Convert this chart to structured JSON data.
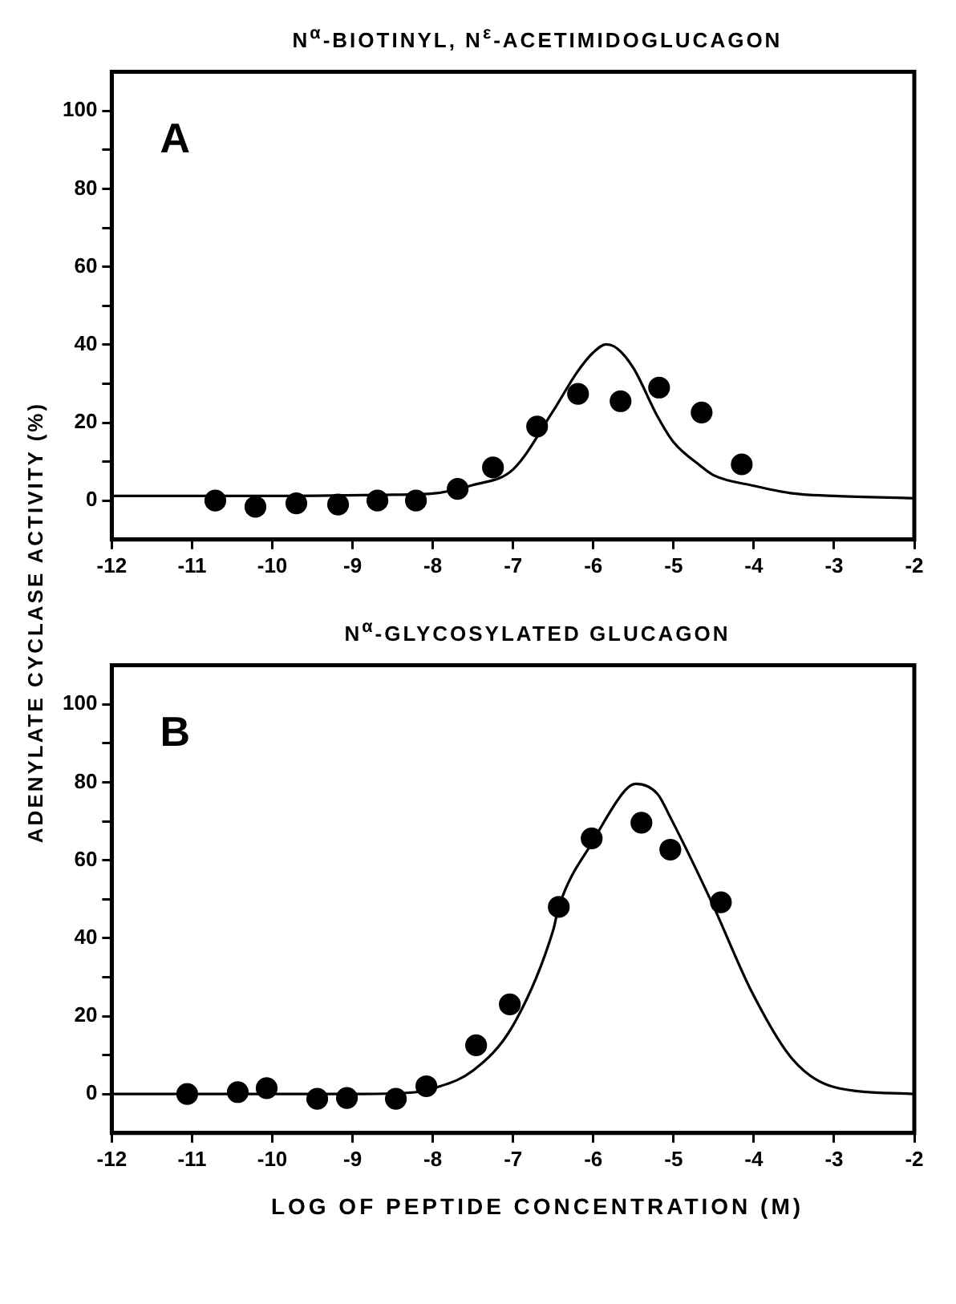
{
  "chart_data": [
    {
      "type": "scatter",
      "title": "N$^{α}$-BIOTINYL, N$^{ε}$-ACETIMIDOGLUCAGON",
      "ylabel": "ADENYLATE CYCLASE ACTIVITY (%)",
      "annotations": [
        "A"
      ],
      "xlim": [
        -12,
        -2
      ],
      "xticks": [
        -12,
        -11,
        -10,
        -9,
        -8,
        -7,
        -6,
        -5,
        -4,
        -3,
        -2
      ],
      "ylim": [
        -10,
        110
      ],
      "yticks": [
        0,
        {
          "value": 10,
          "label": null
        },
        20,
        {
          "value": 30,
          "label": null
        },
        40,
        {
          "value": 50,
          "label": null
        },
        60,
        {
          "value": 70,
          "label": null
        },
        80,
        {
          "value": 90,
          "label": null
        },
        100
      ],
      "grid": false,
      "legend": false,
      "series": [
        {
          "type": "scatter",
          "marker": "circle",
          "color": "#000000",
          "x": [
            -10.71,
            -10.21,
            -9.7,
            -9.18,
            -8.69,
            -8.21,
            -7.69,
            -7.25,
            -6.7,
            -6.19,
            -5.66,
            -5.18,
            -4.65,
            -4.15
          ],
          "values": [
            0,
            -1.6,
            -0.7,
            -1,
            0,
            0,
            3,
            8.5,
            19,
            27.4,
            25.5,
            29,
            22.6,
            9.3
          ]
        },
        {
          "type": "line",
          "marker": "none",
          "color": "#000000",
          "x": [
            -12,
            -10,
            -8.5,
            -8,
            -7.5,
            -7,
            -6.5,
            -6.2,
            -6,
            -5.84,
            -5.7,
            -5.5,
            -5.2,
            -5,
            -4.67,
            -4.5,
            -4,
            -3.5,
            -3,
            -2
          ],
          "values": [
            1.2,
            1.2,
            1.5,
            1.8,
            4,
            8,
            23,
            33,
            38,
            40.1,
            39,
            34,
            21.6,
            15,
            9,
            6.5,
            3.8,
            1.8,
            1.2,
            0.6
          ]
        }
      ]
    },
    {
      "type": "scatter",
      "title": "N$^{α}$-GLYCOSYLATED GLUCAGON",
      "xlabel": "LOG OF PEPTIDE CONCENTRATION (M)",
      "annotations": [
        "B"
      ],
      "xlim": [
        -12,
        -2
      ],
      "xticks": [
        -12,
        -11,
        -10,
        -9,
        -8,
        -7,
        -6,
        -5,
        -4,
        -3,
        -2
      ],
      "ylim": [
        -10,
        110
      ],
      "yticks": [
        0,
        {
          "value": 10,
          "label": null
        },
        20,
        {
          "value": 30,
          "label": null
        },
        40,
        {
          "value": 50,
          "label": null
        },
        60,
        {
          "value": 70,
          "label": null
        },
        80,
        {
          "value": 90,
          "label": null
        },
        100
      ],
      "grid": false,
      "legend": false,
      "series": [
        {
          "type": "scatter",
          "marker": "circle",
          "color": "#000000",
          "x": [
            -11.06,
            -10.43,
            -10.07,
            -9.44,
            -9.07,
            -8.46,
            -8.08,
            -7.46,
            -7.04,
            -6.43,
            -6.02,
            -5.4,
            -5.04,
            -4.41
          ],
          "values": [
            0,
            0.5,
            1.5,
            -1.2,
            -1,
            -1.2,
            2,
            12.5,
            23,
            48,
            65.6,
            69.6,
            62.7,
            49.2
          ]
        },
        {
          "type": "line",
          "marker": "none",
          "color": "#000000",
          "x": [
            -12,
            -9,
            -8.2,
            -8,
            -7.5,
            -7,
            -6.5,
            -6.43,
            -6,
            -5.6,
            -5.47,
            -5.2,
            -5.04,
            -4.52,
            -4.02,
            -3.52,
            -3,
            -2
          ],
          "values": [
            0,
            0,
            0.5,
            1.4,
            6,
            17.6,
            42,
            48,
            65,
            78,
            79.6,
            77,
            71,
            49,
            26,
            9,
            1.8,
            0
          ]
        }
      ]
    }
  ]
}
